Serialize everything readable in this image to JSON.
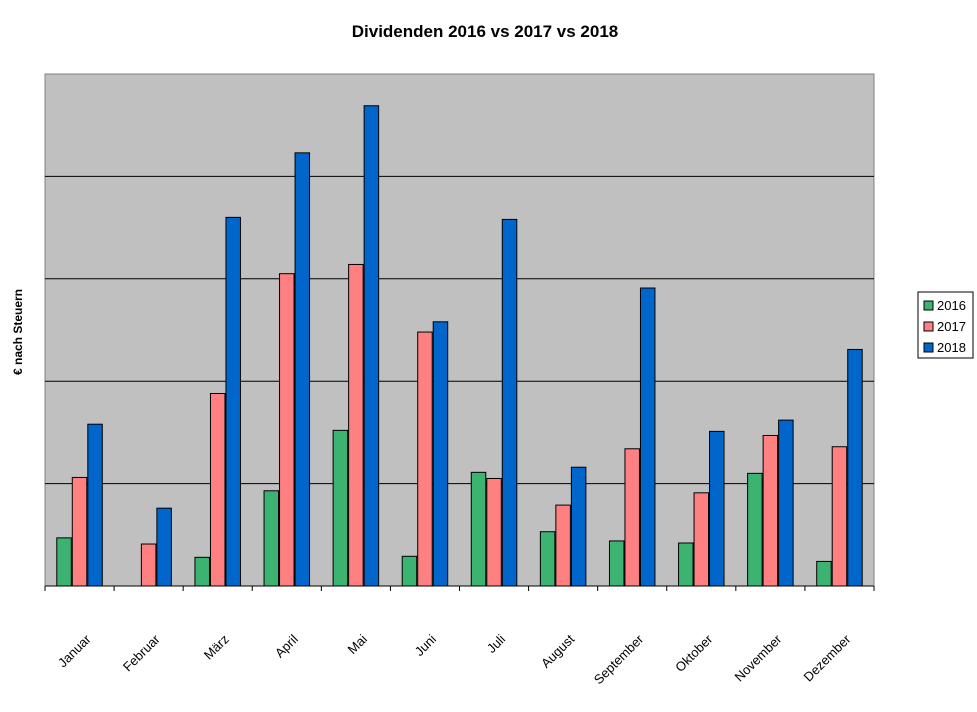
{
  "chart_data": {
    "type": "bar",
    "title": "Dividenden 2016 vs 2017 vs 2018",
    "xlabel": "",
    "ylabel": "€ nach Steuern",
    "ylim": [
      0,
      500
    ],
    "grid": true,
    "legend_position": "right",
    "categories": [
      "Januar",
      "Februar",
      "März",
      "April",
      "Mai",
      "Juni",
      "Juli",
      "August",
      "September",
      "Oktober",
      "November",
      "Dezember"
    ],
    "series": [
      {
        "name": "2016",
        "color": "#3cb371",
        "values": [
          47,
          0,
          28,
          93,
          152,
          29,
          111,
          53,
          44,
          42,
          110,
          24
        ]
      },
      {
        "name": "2017",
        "color": "#ff8080",
        "values": [
          106,
          41,
          188,
          305,
          314,
          248,
          105,
          79,
          134,
          91,
          147,
          136
        ]
      },
      {
        "name": "2018",
        "color": "#0066cc",
        "values": [
          158,
          76,
          360,
          423,
          469,
          258,
          358,
          116,
          291,
          151,
          162,
          231
        ]
      }
    ]
  }
}
